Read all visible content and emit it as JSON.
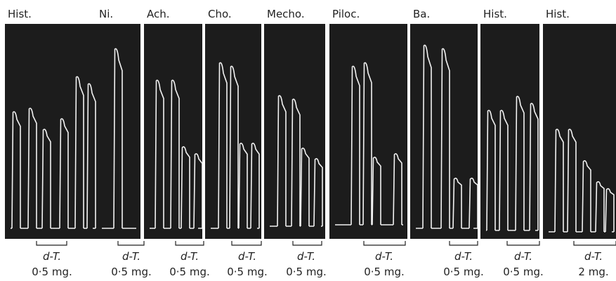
{
  "panels": [
    {
      "label": "Hist.",
      "treatment": "d-T.",
      "dose": "0·5 mg."
    },
    {
      "label": "Ni.",
      "treatment": "d-T.",
      "dose": "0·5 mg."
    },
    {
      "label": "Ach.",
      "treatment": "d-T.",
      "dose": "0·5 mg."
    },
    {
      "label": "Cho.",
      "treatment": "d-T.",
      "dose": "0·5 mg."
    },
    {
      "label": "Mecho.",
      "treatment": "d-T.",
      "dose": "0·5 mg."
    },
    {
      "label": "Piloc.",
      "treatment": "d-T.",
      "dose": "0·5 mg."
    },
    {
      "label": "Ba.",
      "treatment": "d-T.",
      "dose": "0·5 mg."
    },
    {
      "label": "Hist.",
      "treatment": "d-T.",
      "dose": "0·5 mg."
    },
    {
      "label": "Hist.",
      "treatment": "d-T.",
      "dose": "2 mg."
    }
  ]
}
